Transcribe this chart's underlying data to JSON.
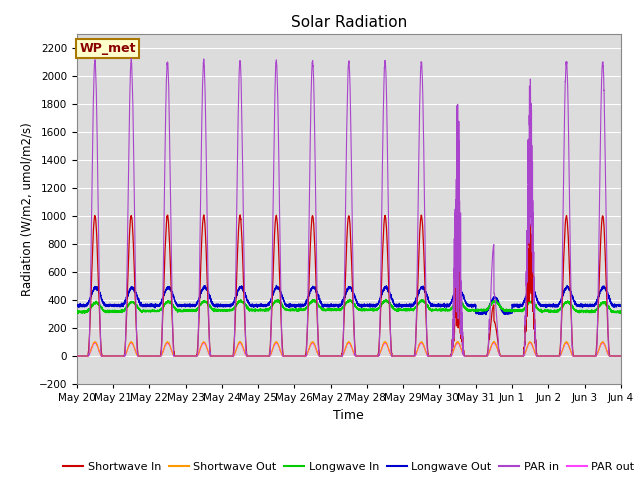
{
  "title": "Solar Radiation",
  "xlabel": "Time",
  "ylabel": "Radiation (W/m2, umol/m2/s)",
  "ylim": [
    -200,
    2300
  ],
  "yticks": [
    -200,
    0,
    200,
    400,
    600,
    800,
    1000,
    1200,
    1400,
    1600,
    1800,
    2000,
    2200
  ],
  "x_tick_labels": [
    "May 20",
    "May 21",
    "May 22",
    "May 23",
    "May 24",
    "May 25",
    "May 26",
    "May 27",
    "May 28",
    "May 29",
    "May 30",
    "May 31",
    "Jun 1",
    "Jun 2",
    "Jun 3",
    "Jun 4"
  ],
  "annotation_text": "WP_met",
  "annotation_bg": "#ffffcc",
  "annotation_border": "#aa7700",
  "annotation_text_color": "#880000",
  "colors": {
    "shortwave_in": "#cc0000",
    "shortwave_out": "#ff9900",
    "longwave_in": "#00cc00",
    "longwave_out": "#0000cc",
    "par_in": "#aa44cc",
    "par_out": "#ff44ff"
  },
  "n_days": 15,
  "background_color": "#dcdcdc",
  "grid_color": "#ffffff"
}
